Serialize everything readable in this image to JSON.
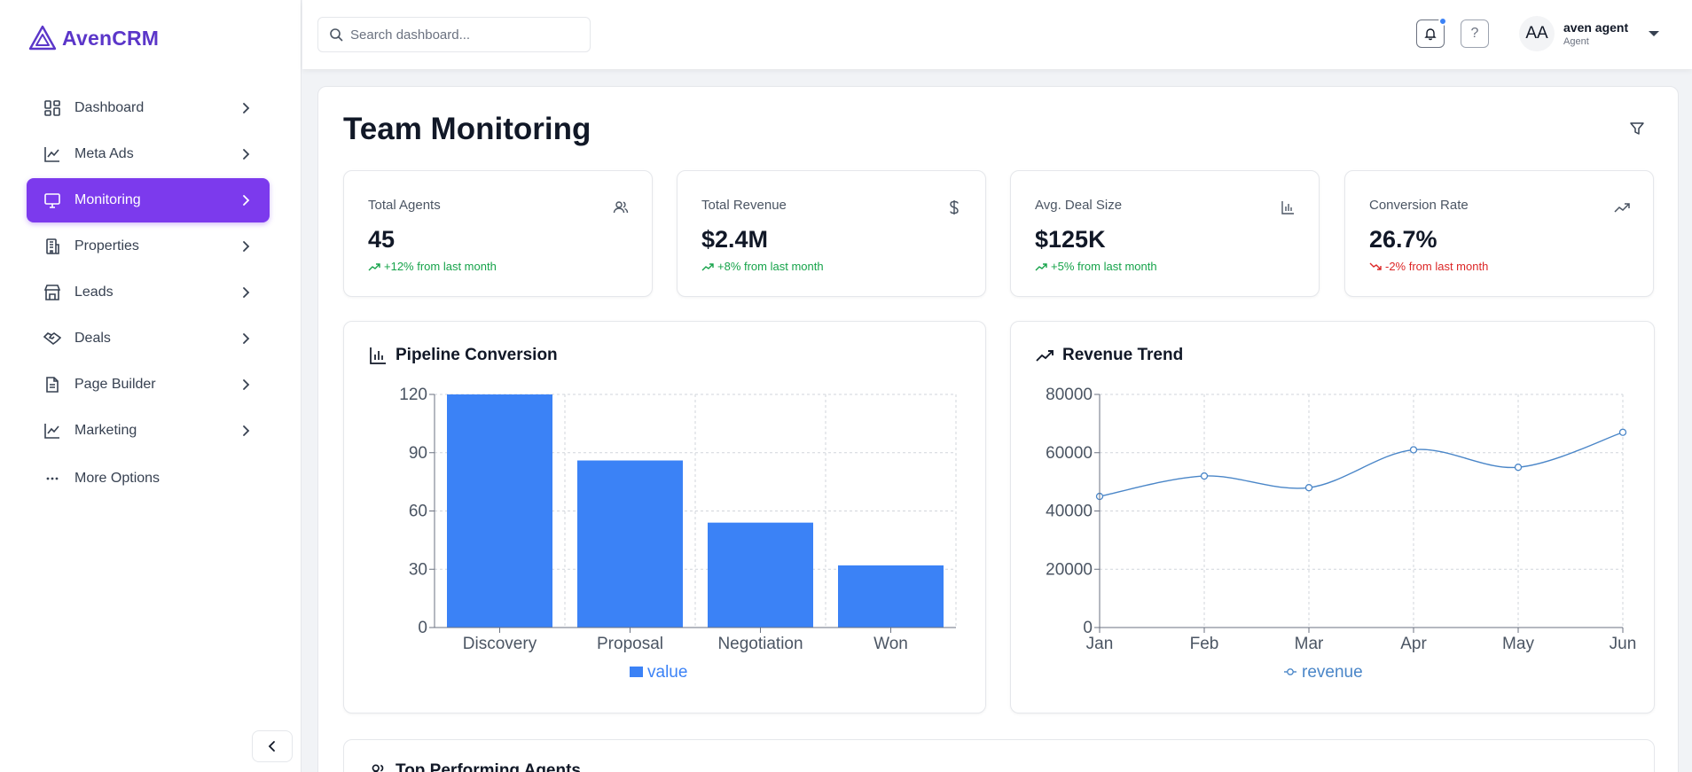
{
  "brand": {
    "name": "AvenCRM",
    "accent": "#5b36c9"
  },
  "sidebar": {
    "items": [
      {
        "label": "Dashboard",
        "icon": "dashboard-grid-icon",
        "active": false
      },
      {
        "label": "Meta Ads",
        "icon": "line-chart-icon",
        "active": false
      },
      {
        "label": "Monitoring",
        "icon": "monitor-icon",
        "active": true
      },
      {
        "label": "Properties",
        "icon": "building-icon",
        "active": false
      },
      {
        "label": "Leads",
        "icon": "store-icon",
        "active": false
      },
      {
        "label": "Deals",
        "icon": "handshake-icon",
        "active": false
      },
      {
        "label": "Page Builder",
        "icon": "document-icon",
        "active": false
      },
      {
        "label": "Marketing",
        "icon": "line-chart-icon",
        "active": false
      }
    ],
    "more_label": "More Options",
    "active_color": "#7c3aed"
  },
  "topbar": {
    "search_placeholder": "Search dashboard...",
    "help_label": "?",
    "user": {
      "initials": "AA",
      "name": "aven agent",
      "role": "Agent"
    }
  },
  "page": {
    "title": "Team Monitoring"
  },
  "stats": [
    {
      "label": "Total Agents",
      "value": "45",
      "change": "+12% from last month",
      "trend": "up",
      "icon": "users-icon"
    },
    {
      "label": "Total Revenue",
      "value": "$2.4M",
      "change": "+8% from last month",
      "trend": "up",
      "icon": "dollar-icon"
    },
    {
      "label": "Avg. Deal Size",
      "value": "$125K",
      "change": "+5% from last month",
      "trend": "up",
      "icon": "bar-chart-icon"
    },
    {
      "label": "Conversion Rate",
      "value": "26.7%",
      "change": "-2% from last month",
      "trend": "down",
      "icon": "trending-up-icon"
    }
  ],
  "charts": {
    "pipeline_title": "Pipeline Conversion",
    "revenue_title": "Revenue Trend"
  },
  "chart_data": [
    {
      "type": "bar",
      "title": "Pipeline Conversion",
      "categories": [
        "Discovery",
        "Proposal",
        "Negotiation",
        "Won"
      ],
      "series": [
        {
          "name": "value",
          "values": [
            120,
            86,
            54,
            32
          ],
          "color": "#3b82f6"
        }
      ],
      "yticks": [
        0,
        30,
        60,
        90,
        120
      ],
      "ylim": [
        0,
        120
      ],
      "grid": true,
      "legend": "bottom"
    },
    {
      "type": "line",
      "title": "Revenue Trend",
      "categories": [
        "Jan",
        "Feb",
        "Mar",
        "Apr",
        "May",
        "Jun"
      ],
      "series": [
        {
          "name": "revenue",
          "values": [
            45000,
            52000,
            48000,
            61000,
            55000,
            67000
          ],
          "color": "#4a86c8"
        }
      ],
      "yticks": [
        0,
        20000,
        40000,
        60000,
        80000
      ],
      "ylim": [
        0,
        80000
      ],
      "grid": true,
      "legend": "bottom"
    }
  ],
  "agents_section": {
    "title": "Top Performing Agents"
  }
}
